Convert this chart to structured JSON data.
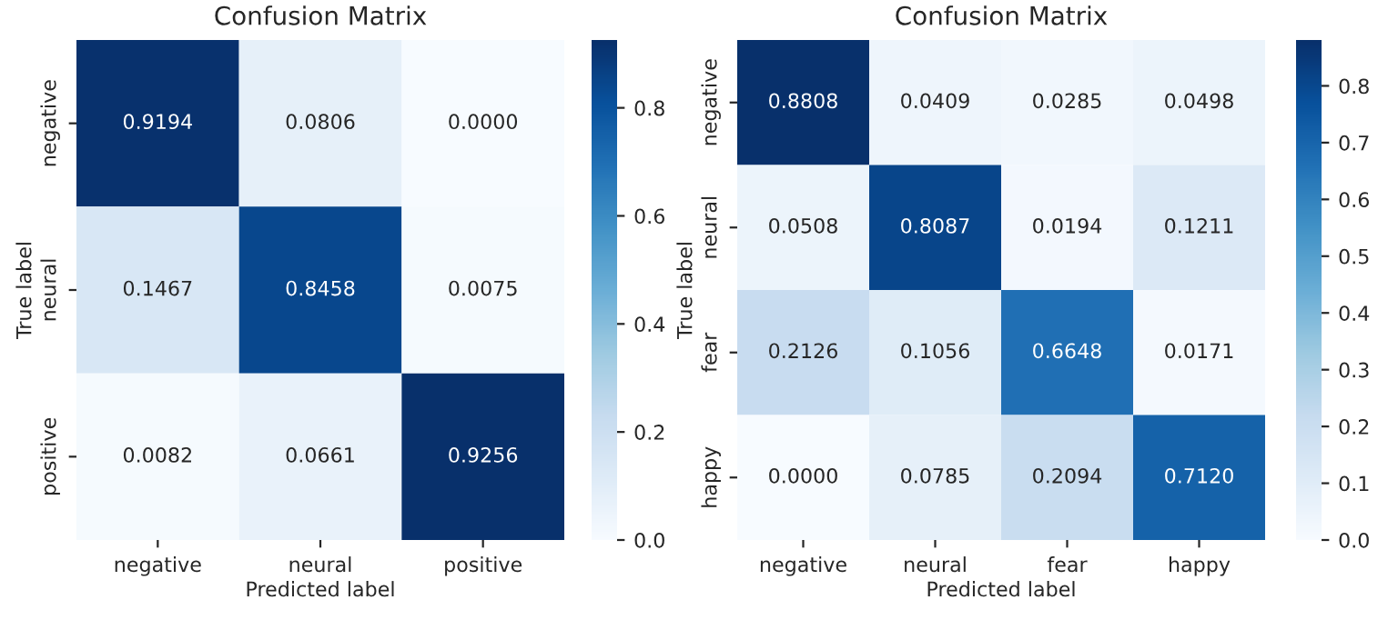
{
  "chart_data": [
    {
      "type": "heatmap",
      "title": "Confusion Matrix",
      "xlabel": "Predicted label",
      "ylabel": "True label",
      "categories": [
        "negative",
        "neural",
        "positive"
      ],
      "y_categories": [
        "negative",
        "neural",
        "positive"
      ],
      "cells": [
        [
          0.9194,
          0.0806,
          0.0
        ],
        [
          0.1467,
          0.8458,
          0.0075
        ],
        [
          0.0082,
          0.0661,
          0.9256
        ]
      ],
      "cell_labels": [
        [
          "0.9194",
          "0.0806",
          "0.0000"
        ],
        [
          "0.1467",
          "0.8458",
          "0.0075"
        ],
        [
          "0.0082",
          "0.0661",
          "0.9256"
        ]
      ],
      "clim": [
        0,
        0.9256
      ],
      "cticks": [
        {
          "value": 0,
          "label": "0.0"
        },
        0.2,
        0.4,
        0.6,
        0.8
      ]
    },
    {
      "type": "heatmap",
      "title": "Confusion Matrix",
      "xlabel": "Predicted label",
      "ylabel": "True label",
      "categories": [
        "negative",
        "neural",
        "fear",
        "happy"
      ],
      "y_categories": [
        "negative",
        "neural",
        "fear",
        "happy"
      ],
      "cells": [
        [
          0.8808,
          0.0409,
          0.0285,
          0.0498
        ],
        [
          0.0508,
          0.8087,
          0.0194,
          0.1211
        ],
        [
          0.2126,
          0.1056,
          0.6648,
          0.0171
        ],
        [
          0.0,
          0.0785,
          0.2094,
          0.712
        ]
      ],
      "cell_labels": [
        [
          "0.8808",
          "0.0409",
          "0.0285",
          "0.0498"
        ],
        [
          "0.0508",
          "0.8087",
          "0.0194",
          "0.1211"
        ],
        [
          "0.2126",
          "0.1056",
          "0.6648",
          "0.0171"
        ],
        [
          "0.0000",
          "0.0785",
          "0.2094",
          "0.7120"
        ]
      ],
      "clim": [
        0,
        0.8808
      ],
      "cticks": [
        {
          "value": 0,
          "label": "0.0"
        },
        0.1,
        0.2,
        0.3,
        0.4,
        0.5,
        0.6,
        0.7,
        0.8
      ]
    }
  ]
}
